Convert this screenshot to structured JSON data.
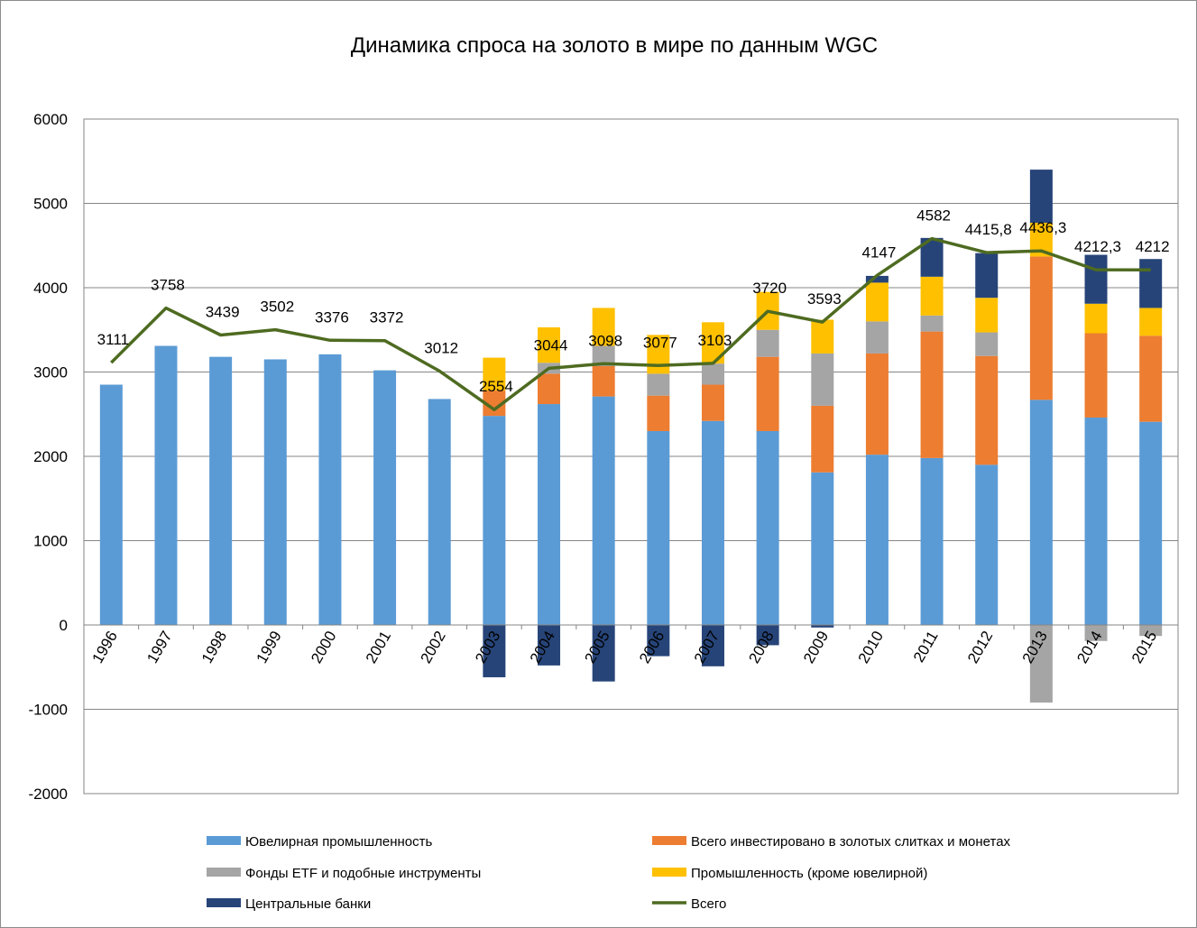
{
  "chart_data": {
    "type": "bar",
    "title": "Динамика спроса на золото в мире по данным WGC",
    "xlabel": "",
    "ylabel": "",
    "ylim": [
      -2000,
      6000
    ],
    "yticks": [
      "-2000",
      "-1000",
      "0",
      "1000",
      "2000",
      "3000",
      "4000",
      "5000",
      "6000"
    ],
    "grid": true,
    "legend_position": "bottom",
    "stacked": true,
    "categories": [
      "1996",
      "1997",
      "1998",
      "1999",
      "2000",
      "2001",
      "2002",
      "2003",
      "2004",
      "2005",
      "2006",
      "2007",
      "2008",
      "2009",
      "2010",
      "2011",
      "2012",
      "2013",
      "2014",
      "2015"
    ],
    "series": [
      {
        "name": "Ювелирная промышленность",
        "color": "#5b9bd5",
        "kind": "bar",
        "values": [
          2850,
          3310,
          3180,
          3150,
          3210,
          3020,
          2680,
          2480,
          2620,
          2710,
          2300,
          2420,
          2300,
          1810,
          2020,
          1980,
          1900,
          2670,
          2460,
          2410
        ]
      },
      {
        "name": "Всего инвестировано  в золотых слитках и монетах",
        "color": "#ed7d31",
        "kind": "bar",
        "values": [
          0,
          0,
          0,
          0,
          0,
          0,
          0,
          300,
          360,
          360,
          420,
          430,
          880,
          790,
          1200,
          1500,
          1290,
          1700,
          1000,
          1020
        ]
      },
      {
        "name": "Фонды ETF и подобные инструменты",
        "color": "#a5a5a5",
        "kind": "bar",
        "values": [
          0,
          0,
          0,
          0,
          0,
          0,
          0,
          0,
          130,
          240,
          260,
          250,
          320,
          620,
          380,
          190,
          280,
          -920,
          -190,
          -130
        ]
      },
      {
        "name": "Промышленность (кроме ювелирной)",
        "color": "#ffc000",
        "kind": "bar",
        "values": [
          0,
          0,
          0,
          0,
          0,
          0,
          0,
          390,
          420,
          450,
          460,
          490,
          450,
          400,
          460,
          460,
          410,
          400,
          350,
          330
        ]
      },
      {
        "name": "Центральные банки",
        "color": "#264478",
        "kind": "bar",
        "values": [
          0,
          0,
          0,
          0,
          0,
          0,
          0,
          -620,
          -480,
          -670,
          -370,
          -490,
          -240,
          -30,
          80,
          460,
          530,
          630,
          580,
          580
        ]
      },
      {
        "name": "Всего",
        "color": "#4e6b21",
        "kind": "line",
        "values": [
          3111,
          3758,
          3439,
          3502,
          3376,
          3372,
          3012,
          2554,
          3044,
          3098,
          3077,
          3103,
          3720,
          3593,
          4147,
          4582,
          4415.8,
          4436.3,
          4212.3,
          4212
        ],
        "labels": [
          "3111",
          "3758",
          "3439",
          "3502",
          "3376",
          "3372",
          "3012",
          "2554",
          "3044",
          "3098",
          "3077",
          "3103",
          "3720",
          "3593",
          "4147",
          "4582",
          "4415,8",
          "4436,3",
          "4212,3",
          "4212"
        ]
      }
    ]
  }
}
